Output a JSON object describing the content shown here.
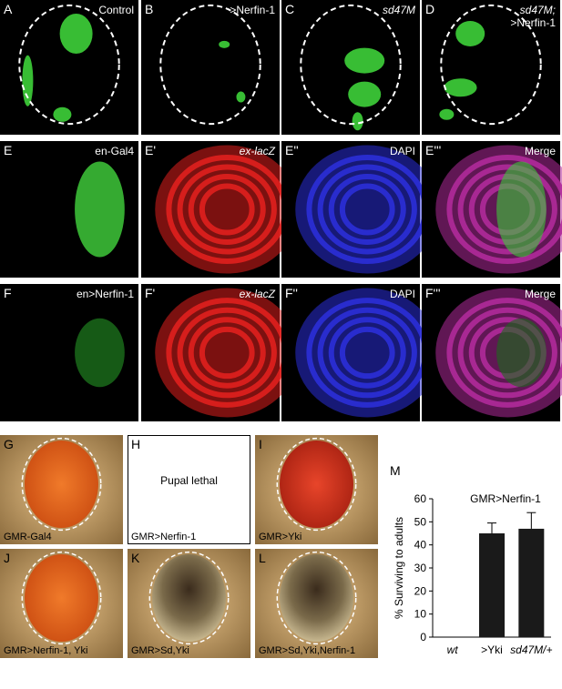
{
  "panels": [
    {
      "letter": "A",
      "caption": "Control"
    },
    {
      "letter": "B",
      "caption": ">Nerfin-1"
    },
    {
      "letter": "C",
      "caption": "sd47M"
    },
    {
      "letter": "D",
      "caption": "sd47M;",
      "caption2": ">Nerfin-1"
    },
    {
      "letter": "E",
      "caption": "en-Gal4"
    },
    {
      "letter": "E'",
      "caption": "ex-lacZ"
    },
    {
      "letter": "E''",
      "caption": "DAPI"
    },
    {
      "letter": "E'''",
      "caption": "Merge"
    },
    {
      "letter": "F",
      "caption": "en>Nerfin-1"
    },
    {
      "letter": "F'",
      "caption": "ex-lacZ"
    },
    {
      "letter": "F''",
      "caption": "DAPI"
    },
    {
      "letter": "F'''",
      "caption": "Merge"
    },
    {
      "letter": "G",
      "caption": "GMR-Gal4"
    },
    {
      "letter": "H",
      "caption": "GMR>Nerfin-1",
      "note": "Pupal lethal"
    },
    {
      "letter": "I",
      "caption": "GMR>Yki"
    },
    {
      "letter": "J",
      "caption": "GMR>Nerfin-1, Yki"
    },
    {
      "letter": "K",
      "caption": "GMR>Sd,Yki"
    },
    {
      "letter": "L",
      "caption": "GMR>Sd,Yki,Nerfin-1"
    }
  ],
  "chart_data": {
    "type": "bar",
    "panel_label": "M",
    "title": "GMR>Nerfin-1",
    "ylabel": "% Surviving to adults",
    "categories": [
      "wt",
      ">Yki",
      "sd47M/+"
    ],
    "values": [
      0,
      45,
      47
    ],
    "errors": [
      null,
      4.5,
      7
    ],
    "color": "#1a1a1a",
    "ylim": [
      0,
      60
    ],
    "yticks": [
      0,
      10,
      20,
      30,
      40,
      50,
      60
    ]
  }
}
